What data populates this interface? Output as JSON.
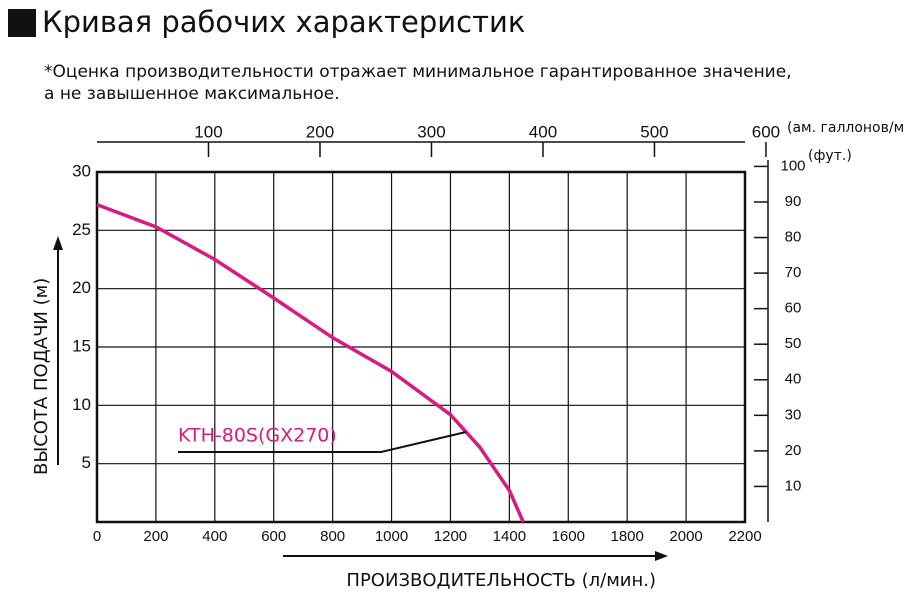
{
  "chart_data": {
    "type": "line",
    "title": "Кривая рабочих характеристик",
    "subtitle": [
      "*Оценка производительности отражает минимальное гарантированное значение,",
      "а не завышенное максимальное."
    ],
    "x_label": "ПРОИЗВОДИТЕЛЬНОСТЬ (л/мин.)",
    "y_label": "ВЫСОТА ПОДАЧИ (м)",
    "x2_label": "(ам. галлонов/мин.)",
    "y2_label": "(фут.)",
    "x": [
      0,
      200,
      400,
      600,
      800,
      1000,
      1200,
      1300,
      1400,
      1447
    ],
    "series": [
      {
        "name": "KTH-80S(GX270)",
        "color": "#d81b7f",
        "values": [
          27.2,
          25.3,
          22.5,
          19.2,
          15.8,
          12.9,
          9.2,
          6.4,
          2.7,
          0
        ]
      }
    ],
    "xlim": [
      0,
      2200
    ],
    "xticks": [
      0,
      200,
      400,
      600,
      800,
      1000,
      1200,
      1400,
      1600,
      1800,
      2000,
      2200
    ],
    "ylim": [
      0,
      30
    ],
    "yticks": [
      5,
      10,
      15,
      20,
      25,
      30
    ],
    "x2lim": [
      0,
      581.2
    ],
    "x2ticks": [
      100,
      200,
      300,
      400,
      500,
      600
    ],
    "y2lim": [
      0,
      98.43
    ],
    "y2ticks": [
      10,
      20,
      30,
      40,
      50,
      60,
      70,
      80,
      90,
      100
    ],
    "grid": true
  }
}
